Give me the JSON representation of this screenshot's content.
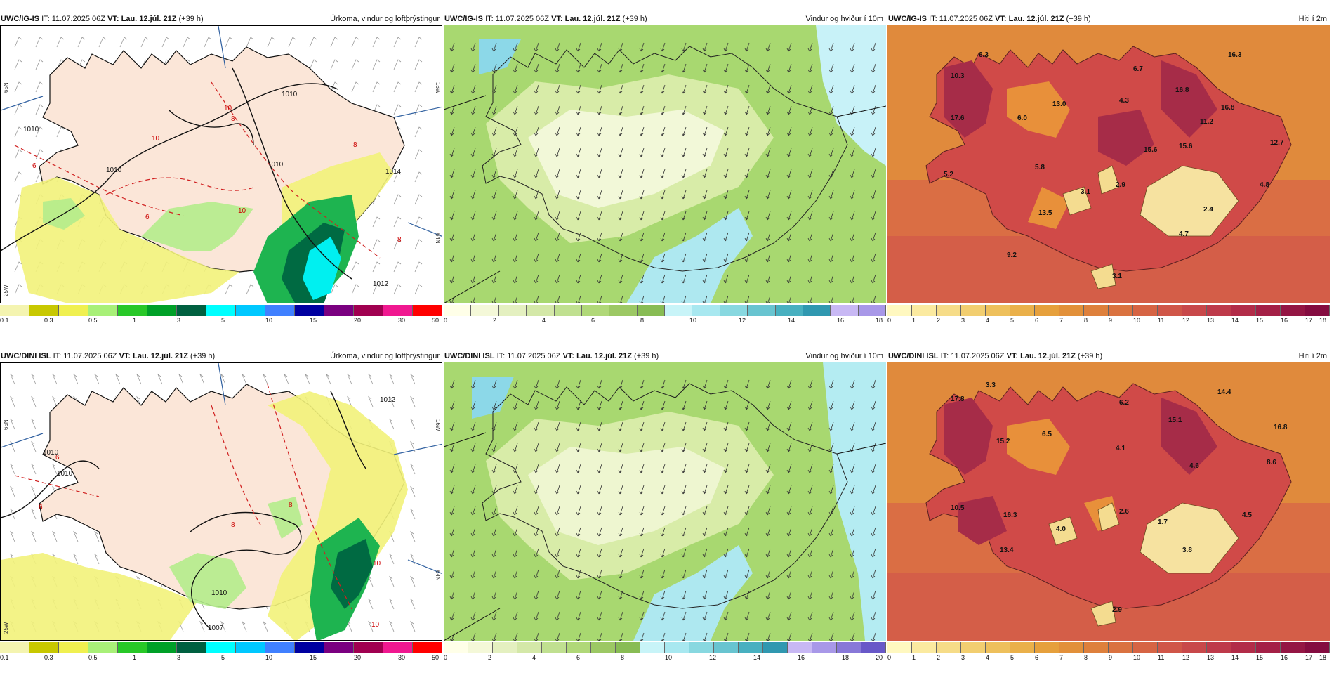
{
  "panels": [
    {
      "id": "r0c0",
      "type": "precip",
      "header": {
        "model": "UWC/IG-IS",
        "it_label": "IT:",
        "it": "11.07.2025 06Z",
        "vt_label": "VT:",
        "vt": "Lau. 12.júl. 21Z",
        "lead": "(+39 h)",
        "title": "Úrkoma, vindur og loftþrýstingur"
      },
      "colorbar": {
        "colors": [
          "#f4f4b0",
          "#c8c800",
          "#f0f050",
          "#a8f078",
          "#28c828",
          "#00a028",
          "#006040",
          "#00ffff",
          "#00c8ff",
          "#4080ff",
          "#0000a0",
          "#7a0080",
          "#a00050",
          "#f01890",
          "#ff0000"
        ],
        "labels": [
          "0.1",
          "0.3",
          "0.5",
          "1",
          "3",
          "5",
          "10",
          "15",
          "20",
          "30",
          "50"
        ]
      },
      "isobars": [
        "1010",
        "1010",
        "1010",
        "1012",
        "1010",
        "1014"
      ],
      "isotherms": [
        "6",
        "8",
        "10",
        "8",
        "6",
        "8",
        "10",
        "10"
      ],
      "axis_labels": [
        "65N",
        "64N",
        "25W",
        "16W"
      ]
    },
    {
      "id": "r0c1",
      "type": "wind",
      "header": {
        "model": "UWC/IG-IS",
        "it_label": "IT:",
        "it": "11.07.2025 06Z",
        "vt_label": "VT:",
        "vt": "Lau. 12.júl. 21Z",
        "lead": "(+39 h)",
        "title": "Vindur og hviður í 10m"
      },
      "colorbar": {
        "colors": [
          "#ffffe8",
          "#f4f8d8",
          "#e4f0c0",
          "#d4e8a8",
          "#c0e090",
          "#b0d878",
          "#9cc864",
          "#88bc54",
          "#c8f4f8",
          "#a8e8f0",
          "#88d8e0",
          "#68c4d0",
          "#48b0c0",
          "#3098b0",
          "#c8b8f4",
          "#a898e8"
        ],
        "labels": [
          "0",
          "2",
          "4",
          "6",
          "8",
          "10",
          "12",
          "14",
          "16",
          "18"
        ]
      }
    },
    {
      "id": "r0c2",
      "type": "temp",
      "header": {
        "model": "UWC/IG-IS",
        "it_label": "IT:",
        "it": "11.07.2025 06Z",
        "vt_label": "VT:",
        "vt": "Lau. 12.júl. 21Z",
        "lead": "(+39 h)",
        "title": "Hiti í 2m"
      },
      "colorbar": {
        "colors": [
          "#fff8c0",
          "#fbeaa0",
          "#f6dc88",
          "#f2ce70",
          "#eec05c",
          "#eab04a",
          "#e6a03c",
          "#e2903a",
          "#de803c",
          "#da7240",
          "#d66444",
          "#d05648",
          "#c8484a",
          "#be3a4a",
          "#b22c48",
          "#a42046",
          "#941644",
          "#840c40"
        ],
        "labels": [
          "0",
          "1",
          "2",
          "3",
          "4",
          "5",
          "6",
          "7",
          "8",
          "9",
          "10",
          "11",
          "12",
          "13",
          "14",
          "15",
          "16",
          "17",
          "18"
        ]
      },
      "values": [
        "6.3",
        "16.3",
        "10.3",
        "6.7",
        "16.8",
        "17.6",
        "6.0",
        "13.0",
        "4.3",
        "16.8",
        "11.2",
        "12.7",
        "15.6",
        "15.6",
        "5.8",
        "5.2",
        "3.1",
        "2.9",
        "4.8",
        "2.4",
        "13.5",
        "4.7",
        "9.2",
        "3.1"
      ]
    },
    {
      "id": "r1c0",
      "type": "precip",
      "header": {
        "model": "UWC/DINI ISL",
        "it_label": "IT:",
        "it": "11.07.2025 06Z",
        "vt_label": "VT:",
        "vt": "Lau. 12.júl. 21Z",
        "lead": "(+39 h)",
        "title": "Úrkoma, vindur og loftþrýstingur"
      },
      "colorbar": {
        "colors": [
          "#f4f4b0",
          "#c8c800",
          "#f0f050",
          "#a8f078",
          "#28c828",
          "#00a028",
          "#006040",
          "#00ffff",
          "#00c8ff",
          "#4080ff",
          "#0000a0",
          "#7a0080",
          "#a00050",
          "#f01890",
          "#ff0000"
        ],
        "labels": [
          "0.1",
          "0.3",
          "0.5",
          "1",
          "3",
          "5",
          "10",
          "15",
          "20",
          "30",
          "50"
        ]
      },
      "isobars": [
        "1010",
        "1010",
        "1012",
        "1010",
        "1007"
      ],
      "isotherms": [
        "6",
        "6",
        "8",
        "8",
        "10",
        "10"
      ],
      "axis_labels": [
        "65N",
        "64N",
        "25W",
        "16W"
      ]
    },
    {
      "id": "r1c1",
      "type": "wind",
      "header": {
        "model": "UWC/DINI ISL",
        "it_label": "IT:",
        "it": "11.07.2025 06Z",
        "vt_label": "VT:",
        "vt": "Lau. 12.júl. 21Z",
        "lead": "(+39 h)",
        "title": "Vindur og hviður í 10m"
      },
      "colorbar": {
        "colors": [
          "#ffffe8",
          "#f4f8d8",
          "#e4f0c0",
          "#d4e8a8",
          "#c0e090",
          "#b0d878",
          "#9cc864",
          "#88bc54",
          "#c8f4f8",
          "#a8e8f0",
          "#88d8e0",
          "#68c4d0",
          "#48b0c0",
          "#3098b0",
          "#c8b8f4",
          "#a898e8",
          "#8878d8",
          "#6858c8"
        ],
        "labels": [
          "0",
          "2",
          "4",
          "6",
          "8",
          "10",
          "12",
          "14",
          "16",
          "18",
          "20"
        ]
      }
    },
    {
      "id": "r1c2",
      "type": "temp",
      "header": {
        "model": "UWC/DINI ISL",
        "it_label": "IT:",
        "it": "11.07.2025 06Z",
        "vt_label": "VT:",
        "vt": "Lau. 12.júl. 21Z",
        "lead": "(+39 h)",
        "title": "Hiti í 2m"
      },
      "colorbar": {
        "colors": [
          "#fff8c0",
          "#fbeaa0",
          "#f6dc88",
          "#f2ce70",
          "#eec05c",
          "#eab04a",
          "#e6a03c",
          "#e2903a",
          "#de803c",
          "#da7240",
          "#d66444",
          "#d05648",
          "#c8484a",
          "#be3a4a",
          "#b22c48",
          "#a42046",
          "#941644",
          "#840c40"
        ],
        "labels": [
          "0",
          "1",
          "2",
          "3",
          "4",
          "5",
          "6",
          "7",
          "8",
          "9",
          "10",
          "11",
          "12",
          "13",
          "14",
          "15",
          "16",
          "17",
          "18"
        ]
      },
      "values": [
        "3.3",
        "17.8",
        "6.2",
        "14.4",
        "15.1",
        "16.8",
        "15.2",
        "6.5",
        "4.1",
        "4.6",
        "8.6",
        "10.5",
        "16.3",
        "4.0",
        "2.6",
        "1.7",
        "4.5",
        "13.4",
        "3.8",
        "2.9"
      ]
    }
  ]
}
